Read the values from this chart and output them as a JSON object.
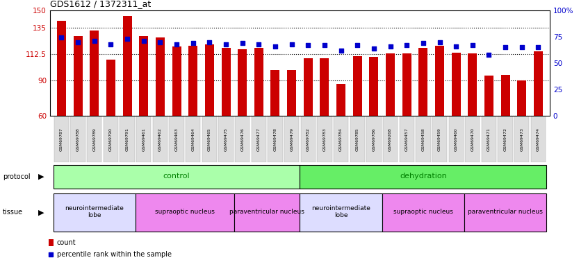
{
  "title": "GDS1612 / 1372311_at",
  "samples": [
    "GSM69787",
    "GSM69788",
    "GSM69789",
    "GSM69790",
    "GSM69791",
    "GSM69461",
    "GSM69462",
    "GSM69463",
    "GSM69464",
    "GSM69465",
    "GSM69475",
    "GSM69476",
    "GSM69477",
    "GSM69478",
    "GSM69479",
    "GSM69782",
    "GSM69783",
    "GSM69784",
    "GSM69785",
    "GSM69786",
    "GSM69268",
    "GSM69457",
    "GSM69458",
    "GSM69459",
    "GSM69460",
    "GSM69470",
    "GSM69471",
    "GSM69472",
    "GSM69473",
    "GSM69474"
  ],
  "counts": [
    141,
    128,
    133,
    108,
    145,
    128,
    127,
    119,
    120,
    121,
    118,
    117,
    118,
    99,
    99,
    109,
    109,
    87,
    111,
    110,
    113,
    113,
    118,
    120,
    114,
    113,
    94,
    95,
    90,
    115
  ],
  "percentiles": [
    74,
    70,
    71,
    68,
    73,
    71,
    70,
    68,
    69,
    70,
    68,
    69,
    68,
    66,
    68,
    67,
    67,
    62,
    67,
    64,
    66,
    67,
    69,
    70,
    66,
    67,
    58,
    65,
    65,
    65
  ],
  "ylim_left": [
    60,
    150
  ],
  "ylim_right": [
    0,
    100
  ],
  "yticks_left": [
    60,
    90,
    112.5,
    135,
    150
  ],
  "yticks_right": [
    0,
    25,
    50,
    75,
    100
  ],
  "bar_color": "#cc0000",
  "dot_color": "#0000cc",
  "protocol_groups": [
    {
      "label": "control",
      "start": 0,
      "end": 14,
      "color": "#aaffaa"
    },
    {
      "label": "dehydration",
      "start": 15,
      "end": 29,
      "color": "#66ee66"
    }
  ],
  "tissue_groups": [
    {
      "label": "neurointermediate\nlobe",
      "start": 0,
      "end": 4,
      "color": "#ddddff"
    },
    {
      "label": "supraoptic nucleus",
      "start": 5,
      "end": 10,
      "color": "#ee88ee"
    },
    {
      "label": "paraventricular nucleus",
      "start": 11,
      "end": 14,
      "color": "#ee88ee"
    },
    {
      "label": "neurointermediate\nlobe",
      "start": 15,
      "end": 19,
      "color": "#ddddff"
    },
    {
      "label": "supraoptic nucleus",
      "start": 20,
      "end": 24,
      "color": "#ee88ee"
    },
    {
      "label": "paraventricular nucleus",
      "start": 25,
      "end": 29,
      "color": "#ee88ee"
    }
  ]
}
